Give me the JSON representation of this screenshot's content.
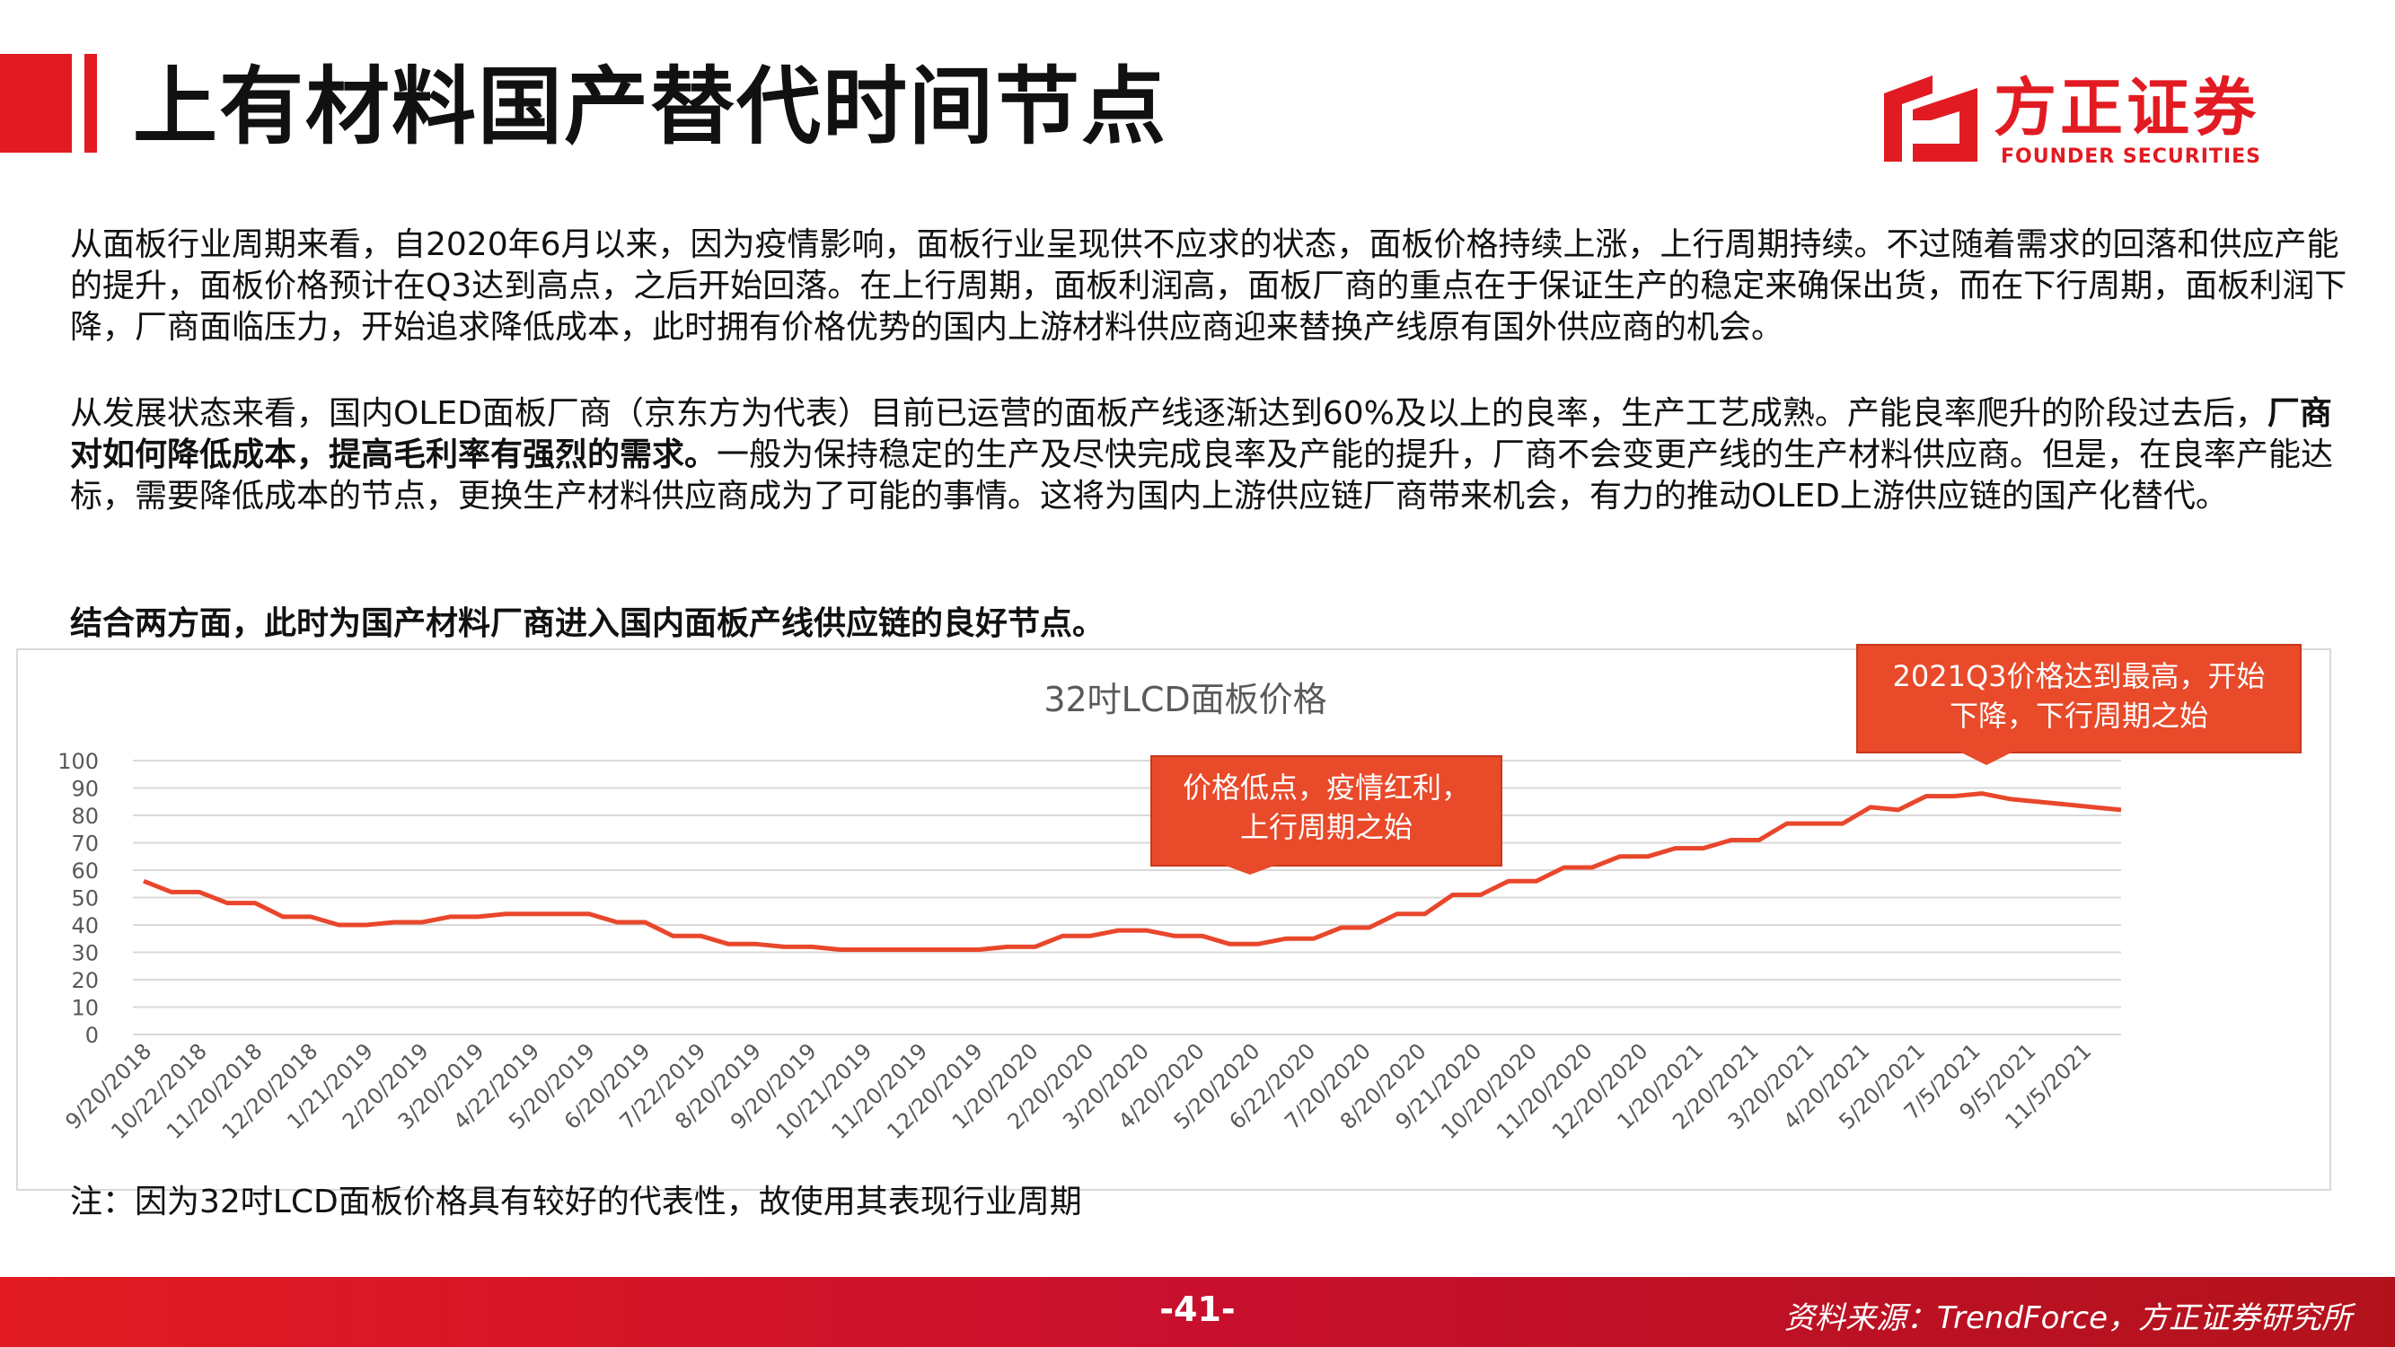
{
  "header": {
    "title": "上有材料国产替代时间节点",
    "logo_cn": "方正证券",
    "logo_en": "FOUNDER SECURITIES"
  },
  "paragraphs": {
    "p1": "从面板行业周期来看，自2020年6月以来，因为疫情影响，面板行业呈现供不应求的状态，面板价格持续上涨，上行周期持续。不过随着需求的回落和供应产能的提升，面板价格预计在Q3达到高点，之后开始回落。在上行周期，面板利润高，面板厂商的重点在于保证生产的稳定来确保出货，而在下行周期，面板利润下降，厂商面临压力，开始追求降低成本，此时拥有价格优势的国内上游材料供应商迎来替换产线原有国外供应商的机会。",
    "p2_a": "从发展状态来看，国内OLED面板厂商（京东方为代表）目前已运营的面板产线逐渐达到60%及以上的良率，生产工艺成熟。产能良率爬升的阶段过去后，",
    "p2_bold": "厂商对如何降低成本，提高毛利率有强烈的需求。",
    "p2_b": "一般为保持稳定的生产及尽快完成良率及产能的提升，厂商不会变更产线的生产材料供应商。但是，在良率产能达标，需要降低成本的节点，更换生产材料供应商成为了可能的事情。这将为国内上游供应链厂商带来机会，有力的推动OLED上游供应链的国产化替代。",
    "p3": "结合两方面，此时为国产材料厂商进入国内面板产线供应链的良好节点。"
  },
  "note": "注：因为32吋LCD面板价格具有较好的代表性，故使用其表现行业周期",
  "footer": {
    "page": "-41-",
    "source": "资料来源：TrendForce，方正证券研究所"
  },
  "colors": {
    "brand_red": "#e21b22",
    "line": "#e8472c",
    "callout": "#e84a2a",
    "axis_text": "#595959",
    "grid": "#d9d9d9"
  },
  "chart_data": {
    "type": "line",
    "title": "32吋LCD面板价格",
    "ylim": [
      0,
      100
    ],
    "yticks": [
      0,
      10,
      20,
      30,
      40,
      50,
      60,
      70,
      80,
      90,
      100
    ],
    "grid": true,
    "xtick_labels": [
      "9/20/2018",
      "10/22/2018",
      "11/20/2018",
      "12/20/2018",
      "1/21/2019",
      "2/20/2019",
      "3/20/2019",
      "4/22/2019",
      "5/20/2019",
      "6/20/2019",
      "7/22/2019",
      "8/20/2019",
      "9/20/2019",
      "10/21/2019",
      "11/20/2019",
      "12/20/2019",
      "1/20/2020",
      "2/20/2020",
      "3/20/2020",
      "4/20/2020",
      "5/20/2020",
      "6/22/2020",
      "7/20/2020",
      "8/20/2020",
      "9/21/2020",
      "10/20/2020",
      "11/20/2020",
      "12/20/2020",
      "1/20/2021",
      "2/20/2021",
      "3/20/2021",
      "4/20/2021",
      "5/20/2021",
      "7/5/2021",
      "9/5/2021",
      "11/5/2021"
    ],
    "series": [
      {
        "values": [
          56,
          52,
          52,
          48,
          48,
          43,
          43,
          40,
          40,
          41,
          41,
          43,
          43,
          44,
          44,
          44,
          44,
          41,
          41,
          36,
          36,
          33,
          33,
          32,
          32,
          31,
          31,
          31,
          31,
          31,
          31,
          32,
          32,
          36,
          36,
          38,
          38,
          36,
          36,
          33,
          33,
          35,
          35,
          39,
          39,
          44,
          44,
          51,
          51,
          56,
          56,
          61,
          61,
          65,
          65,
          68,
          68,
          71,
          71,
          77,
          77,
          77,
          83,
          82,
          87,
          87,
          88,
          86,
          85,
          84,
          83,
          82
        ]
      }
    ],
    "annotations": [
      {
        "text_lines": [
          "价格低点，疫情红利，",
          "上行周期之始"
        ]
      },
      {
        "text_lines": [
          "2021Q3价格达到最高，开始",
          "下降，下行周期之始"
        ]
      }
    ]
  }
}
